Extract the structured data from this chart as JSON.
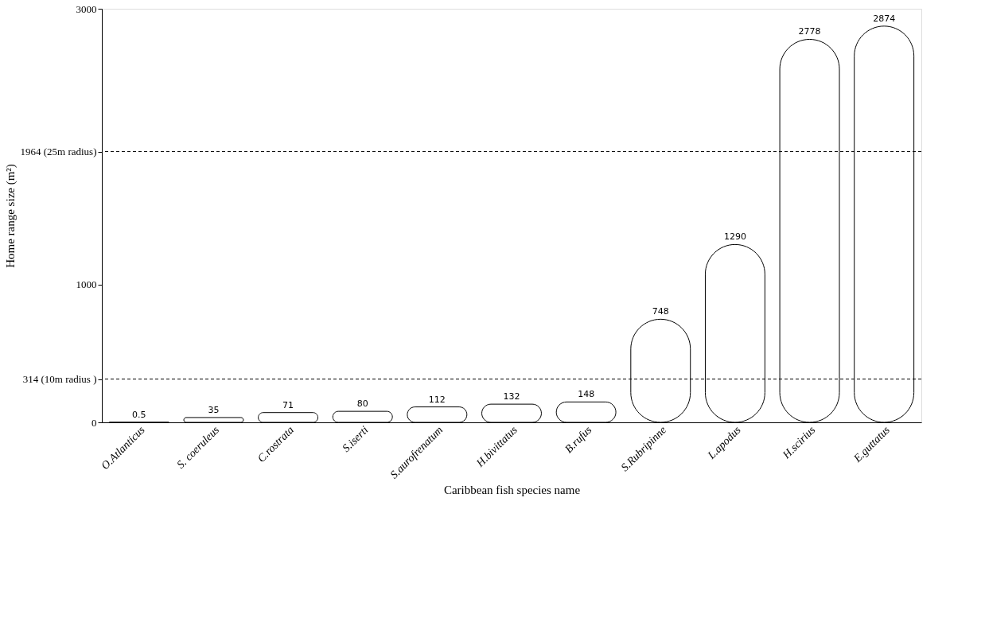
{
  "chart_data": {
    "type": "bar",
    "xlabel": "Caribbean fish species name",
    "ylabel": "Home range size (m²)",
    "categories": [
      "O.Atlanticus",
      "S. coeruleus",
      "C.rostrata",
      "S.iserti",
      "S.aurofrenatum",
      "H.bivittatus",
      "B.rufus",
      "S.Rubripinne",
      "L.apodus",
      "H.scirius",
      "E.guttatus"
    ],
    "values": [
      0.5,
      35,
      71,
      80,
      112,
      132,
      148,
      748,
      1290,
      2778,
      2874
    ],
    "data_labels": true,
    "ylim": [
      0,
      3000
    ],
    "yticks": [
      0,
      {
        "value": 314,
        "label": "314 (10m radius )"
      },
      1000,
      {
        "value": 1964,
        "label": "1964 (25m radius)"
      },
      3000
    ],
    "ref_lines": [
      {
        "axis": "y",
        "value": 314,
        "label": null,
        "color": "#000000",
        "line_style": "dashed"
      },
      {
        "axis": "y",
        "value": 1964,
        "label": null,
        "color": "#000000",
        "line_style": "dashed"
      }
    ],
    "grid": false
  }
}
